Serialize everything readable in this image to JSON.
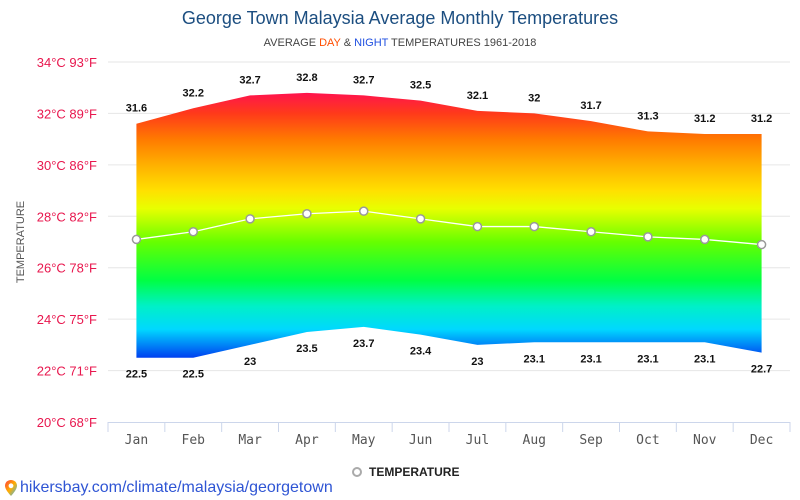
{
  "chart_data": {
    "type": "area",
    "title": "George Town Malaysia Average Monthly Temperatures",
    "subtitle": {
      "prefix": "AVERAGE ",
      "day": "DAY",
      "amp": " & ",
      "night": "NIGHT",
      "suffix": " TEMPERATURES 1961-2018",
      "day_color": "#ff4e00",
      "night_color": "#1f4fe0"
    },
    "xlabel": "",
    "ylabel": "TEMPERATURE",
    "categories": [
      "Jan",
      "Feb",
      "Mar",
      "Apr",
      "May",
      "Jun",
      "Jul",
      "Aug",
      "Sep",
      "Oct",
      "Nov",
      "Dec"
    ],
    "ylim": [
      20,
      34
    ],
    "yticks": [
      {
        "value": 34,
        "label": "34°C 93°F"
      },
      {
        "value": 32,
        "label": "32°C 89°F"
      },
      {
        "value": 30,
        "label": "30°C 86°F"
      },
      {
        "value": 28,
        "label": "28°C 82°F"
      },
      {
        "value": 26,
        "label": "26°C 78°F"
      },
      {
        "value": 24,
        "label": "24°C 75°F"
      },
      {
        "value": 22,
        "label": "22°C 71°F"
      },
      {
        "value": 20,
        "label": "20°C 68°F"
      }
    ],
    "grid": true,
    "series": [
      {
        "name": "Day",
        "role": "range-high",
        "values": [
          31.6,
          32.2,
          32.7,
          32.8,
          32.7,
          32.5,
          32.1,
          32,
          31.7,
          31.3,
          31.2,
          31.2
        ],
        "labels": [
          "31.6",
          "32.2",
          "32.7",
          "32.8",
          "32.7",
          "32.5",
          "32.1",
          "32",
          "31.7",
          "31.3",
          "31.2",
          "31.2"
        ]
      },
      {
        "name": "Night",
        "role": "range-low",
        "values": [
          22.5,
          22.5,
          23,
          23.5,
          23.7,
          23.4,
          23,
          23.1,
          23.1,
          23.1,
          23.1,
          22.7
        ],
        "labels": [
          "22.5",
          "22.5",
          "23",
          "23.5",
          "23.7",
          "23.4",
          "23",
          "23.1",
          "23.1",
          "23.1",
          "23.1",
          "22.7"
        ]
      },
      {
        "name": "TEMPERATURE",
        "role": "line",
        "values": [
          27.1,
          27.4,
          27.9,
          28.1,
          28.2,
          27.9,
          27.6,
          27.6,
          27.4,
          27.2,
          27.1,
          26.9
        ]
      }
    ],
    "gradient_stops": [
      {
        "temp": 33,
        "color": "#ff0a5a"
      },
      {
        "temp": 32,
        "color": "#ff3a1a"
      },
      {
        "temp": 31,
        "color": "#ff7a00"
      },
      {
        "temp": 30,
        "color": "#ffb000"
      },
      {
        "temp": 29,
        "color": "#ffe000"
      },
      {
        "temp": 28.3,
        "color": "#e8ff00"
      },
      {
        "temp": 27,
        "color": "#66ff00"
      },
      {
        "temp": 25.5,
        "color": "#00ff44"
      },
      {
        "temp": 24.5,
        "color": "#00f0c8"
      },
      {
        "temp": 23.6,
        "color": "#00d8ff"
      },
      {
        "temp": 22.5,
        "color": "#0040f0"
      }
    ],
    "legend": {
      "position": "bottom-center",
      "label": "TEMPERATURE"
    }
  },
  "footer": {
    "source_link": "hikersbay.com/climate/malaysia/georgetown"
  }
}
